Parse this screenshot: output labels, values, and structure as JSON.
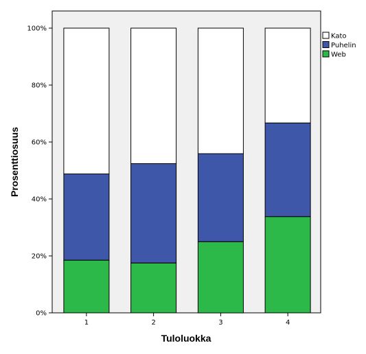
{
  "chart_data": {
    "type": "bar",
    "stacked": true,
    "percent": true,
    "categories": [
      "1",
      "2",
      "3",
      "4"
    ],
    "series": [
      {
        "name": "Web",
        "color": "#2db84a",
        "values": [
          18.5,
          17.5,
          25.0,
          33.8
        ]
      },
      {
        "name": "Puhelin",
        "color": "#3e57a9",
        "values": [
          30.3,
          34.9,
          30.9,
          32.9
        ]
      },
      {
        "name": "Kato",
        "color": "#ffffff",
        "values": [
          51.2,
          47.6,
          44.1,
          33.3
        ]
      }
    ],
    "legend_order": [
      "Kato",
      "Puhelin",
      "Web"
    ],
    "xlabel": "Tuloluokka",
    "ylabel": "Prosenttiosuus",
    "ylim": [
      0,
      100
    ],
    "yticks": [
      "0%",
      "20%",
      "40%",
      "60%",
      "80%",
      "100%"
    ],
    "ytick_values": [
      0,
      20,
      40,
      60,
      80,
      100
    ],
    "grid": false,
    "legend_position": "right",
    "plot_background": "#f0f0f0"
  }
}
